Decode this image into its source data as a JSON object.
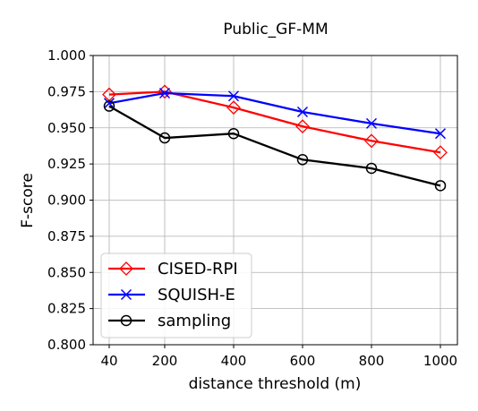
{
  "chart_data": {
    "type": "line",
    "title": "Public_GF-MM",
    "xlabel": "distance threshold (m)",
    "ylabel": "F-score",
    "categories": [
      "40",
      "200",
      "400",
      "600",
      "800",
      "1000"
    ],
    "ylim": [
      0.8,
      1.0
    ],
    "yticks": [
      "0.800",
      "0.825",
      "0.850",
      "0.875",
      "0.900",
      "0.925",
      "0.950",
      "0.975",
      "1.000"
    ],
    "grid": true,
    "legend_position": "lower-left",
    "series": [
      {
        "name": "CISED-RPI",
        "color": "#ff0000",
        "marker": "diamond",
        "values": [
          0.973,
          0.975,
          0.964,
          0.951,
          0.941,
          0.933
        ]
      },
      {
        "name": "SQUISH-E",
        "color": "#0000ff",
        "marker": "x",
        "values": [
          0.967,
          0.974,
          0.972,
          0.961,
          0.953,
          0.946
        ]
      },
      {
        "name": "sampling",
        "color": "#000000",
        "marker": "circle",
        "values": [
          0.965,
          0.943,
          0.946,
          0.928,
          0.922,
          0.91
        ]
      }
    ]
  }
}
